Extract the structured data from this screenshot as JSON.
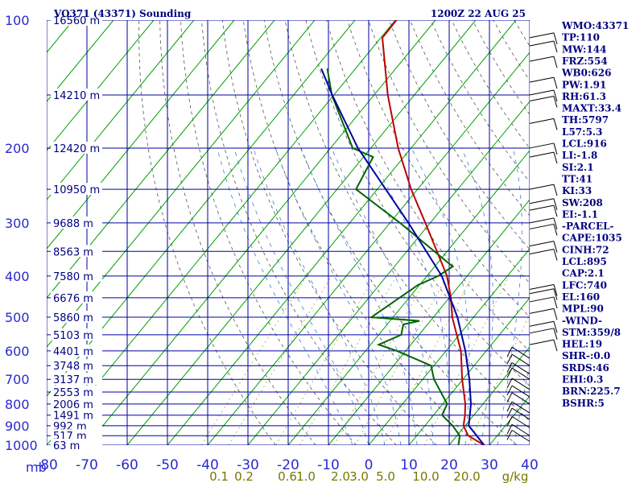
{
  "header": {
    "title_left": "VO371 (43371) Sounding",
    "title_right": "1200Z 22 AUG 25"
  },
  "chart_data": {
    "type": "line",
    "title": "VO371 (43371) Sounding",
    "ylabel": "mb",
    "yscale": "log",
    "ylim": [
      1000,
      100
    ],
    "xlim_at_1000mb": [
      -80,
      40
    ],
    "grid": true,
    "pressure_ticks": [
      100,
      200,
      300,
      400,
      500,
      600,
      700,
      800,
      900,
      1000
    ],
    "temperature_ticks": [
      -80,
      -70,
      -60,
      -50,
      -40,
      -30,
      -20,
      -10,
      0,
      10,
      20,
      30,
      40
    ],
    "temperature_tick_labels": [
      "-80",
      "-70",
      "-60",
      "-50",
      "-40",
      "-30",
      "-20",
      "-10",
      "0",
      "10",
      "20",
      "30",
      "40"
    ],
    "mixing_ratio_labels": [
      "0.1",
      "0.2",
      "0.6",
      "1.0",
      "2.0",
      "3.0",
      "5.0",
      "10.0",
      "20.0",
      "g/kg"
    ],
    "height_labels": [
      {
        "p": 100,
        "text": "16560 m"
      },
      {
        "p": 150,
        "text": "14210 m"
      },
      {
        "p": 200,
        "text": "12420 m"
      },
      {
        "p": 250,
        "text": "10950 m"
      },
      {
        "p": 300,
        "text": "9688 m"
      },
      {
        "p": 350,
        "text": "8563 m"
      },
      {
        "p": 400,
        "text": "7580 m"
      },
      {
        "p": 450,
        "text": "6676 m"
      },
      {
        "p": 500,
        "text": "5860 m"
      },
      {
        "p": 550,
        "text": "5103 m"
      },
      {
        "p": 600,
        "text": "4401 m"
      },
      {
        "p": 650,
        "text": "3748 m"
      },
      {
        "p": 700,
        "text": "3137 m"
      },
      {
        "p": 750,
        "text": "2553 m"
      },
      {
        "p": 800,
        "text": "2006 m"
      },
      {
        "p": 850,
        "text": "1491 m"
      },
      {
        "p": 900,
        "text": "992 m"
      },
      {
        "p": 950,
        "text": "517 m"
      },
      {
        "p": 1000,
        "text": "63 m"
      }
    ],
    "series": [
      {
        "role": "temperature",
        "color": "#c00000",
        "points": [
          {
            "p": 1000,
            "t": 28.7
          },
          {
            "p": 950,
            "t": 22.8
          },
          {
            "p": 900,
            "t": 19.6
          },
          {
            "p": 850,
            "t": 17.8
          },
          {
            "p": 800,
            "t": 15.6
          },
          {
            "p": 700,
            "t": 9.8
          },
          {
            "p": 600,
            "t": 3.7
          },
          {
            "p": 550,
            "t": -0.6
          },
          {
            "p": 500,
            "t": -5.3
          },
          {
            "p": 450,
            "t": -9.6
          },
          {
            "p": 400,
            "t": -15.0
          },
          {
            "p": 300,
            "t": -31.2
          },
          {
            "p": 250,
            "t": -41.6
          },
          {
            "p": 200,
            "t": -53.2
          },
          {
            "p": 150,
            "t": -66.6
          },
          {
            "p": 110,
            "t": -79.6
          },
          {
            "p": 100,
            "t": -79.7
          }
        ]
      },
      {
        "role": "dewpoint",
        "color": "#006400",
        "points": [
          {
            "p": 1000,
            "t": 22.3
          },
          {
            "p": 950,
            "t": 20.7
          },
          {
            "p": 900,
            "t": 16.9
          },
          {
            "p": 850,
            "t": 12.1
          },
          {
            "p": 800,
            "t": 11.1
          },
          {
            "p": 700,
            "t": 2.8
          },
          {
            "p": 650,
            "t": -0.7
          },
          {
            "p": 600,
            "t": -12.2
          },
          {
            "p": 580,
            "t": -18.0
          },
          {
            "p": 550,
            "t": -14.4
          },
          {
            "p": 520,
            "t": -16.0
          },
          {
            "p": 510,
            "t": -12.7
          },
          {
            "p": 500,
            "t": -25.4
          },
          {
            "p": 420,
            "t": -20.4
          },
          {
            "p": 400,
            "t": -17.2
          },
          {
            "p": 380,
            "t": -15.5
          },
          {
            "p": 300,
            "t": -37.5
          },
          {
            "p": 250,
            "t": -55.3
          },
          {
            "p": 210,
            "t": -57.6
          },
          {
            "p": 200,
            "t": -64.5
          },
          {
            "p": 150,
            "t": -80.5
          },
          {
            "p": 130,
            "t": -87.0
          }
        ]
      },
      {
        "role": "parcel",
        "color": "#0000a0",
        "points": [
          {
            "p": 1000,
            "t": 28.7
          },
          {
            "p": 900,
            "t": 20.9
          },
          {
            "p": 800,
            "t": 17.0
          },
          {
            "p": 700,
            "t": 11.6
          },
          {
            "p": 600,
            "t": 4.8
          },
          {
            "p": 500,
            "t": -4.0
          },
          {
            "p": 400,
            "t": -16.3
          },
          {
            "p": 300,
            "t": -35.4
          },
          {
            "p": 200,
            "t": -63.2
          },
          {
            "p": 150,
            "t": -80.4
          },
          {
            "p": 130,
            "t": -88.5
          }
        ]
      }
    ],
    "wind_barbs_right": [
      {
        "p": 110
      },
      {
        "p": 115
      },
      {
        "p": 125
      },
      {
        "p": 140
      },
      {
        "p": 150
      },
      {
        "p": 155
      },
      {
        "p": 175
      },
      {
        "p": 200
      },
      {
        "p": 210
      },
      {
        "p": 250
      },
      {
        "p": 270
      },
      {
        "p": 280
      },
      {
        "p": 300
      },
      {
        "p": 310
      },
      {
        "p": 340
      },
      {
        "p": 355
      },
      {
        "p": 430
      },
      {
        "p": 440
      },
      {
        "p": 460
      },
      {
        "p": 490
      },
      {
        "p": 525
      },
      {
        "p": 545
      },
      {
        "p": 580
      }
    ],
    "wind_barbs_far_right": [
      {
        "p": 625
      },
      {
        "p": 650
      },
      {
        "p": 680
      },
      {
        "p": 700
      },
      {
        "p": 740
      },
      {
        "p": 770
      },
      {
        "p": 800
      },
      {
        "p": 840
      },
      {
        "p": 870
      },
      {
        "p": 910
      },
      {
        "p": 950
      },
      {
        "p": 980
      }
    ]
  },
  "indices": [
    "WMO:43371",
    "TP:110",
    "MW:144",
    "FRZ:554",
    "WB0:626",
    "PW:1.91",
    "RH:61.3",
    "MAXT:33.4",
    "TH:5797",
    "L57:5.3",
    "LCL:916",
    "LI:-1.8",
    "SI:2.1",
    "TT:41",
    "KI:33",
    "SW:208",
    "EI:-1.1",
    "-PARCEL-",
    "CAPE:1035",
    "CINH:72",
    "LCL:895",
    "CAP:2.1",
    "LFC:740",
    "EL:160",
    "MPL:90",
    "-WIND-",
    "STM:359/8",
    "HEL:19",
    "SHR-:0.0",
    "SRDS:46",
    "EHI:0.3",
    "BRN:225.7",
    "BSHR:5"
  ],
  "colors": {
    "isobar": "#0000a0",
    "isotherm": "#00a000",
    "dry_adiabat": "#555555",
    "moist_adiabat": "#3f7fcf",
    "label_text": "#000080",
    "mixing_label": "#777700"
  }
}
